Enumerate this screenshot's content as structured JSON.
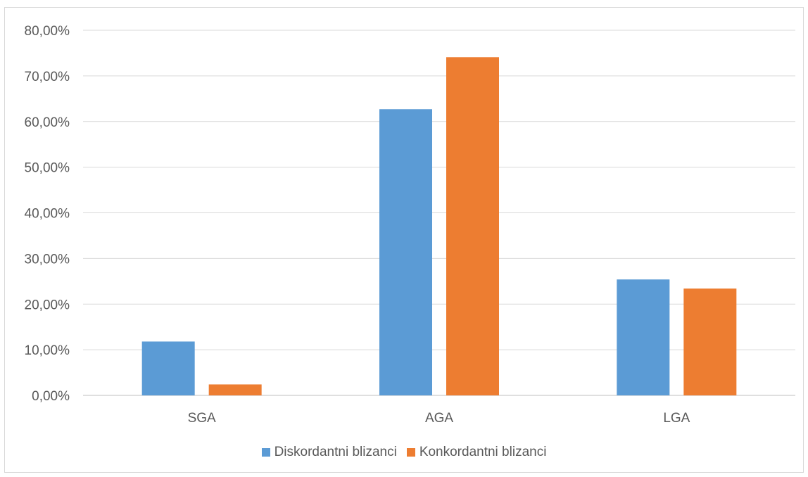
{
  "chart_data": {
    "type": "bar",
    "categories": [
      "SGA",
      "AGA",
      "LGA"
    ],
    "series": [
      {
        "name": "Diskordantni blizanci",
        "values": [
          11.8,
          62.7,
          25.4
        ],
        "color": "#5b9bd5"
      },
      {
        "name": "Konkordantni blizanci",
        "values": [
          2.4,
          74.1,
          23.4
        ],
        "color": "#ed7d31"
      }
    ],
    "ylim": [
      0,
      80
    ],
    "yticks": [
      0,
      10,
      20,
      30,
      40,
      50,
      60,
      70,
      80
    ],
    "ytick_labels": [
      "0,00%",
      "10,00%",
      "20,00%",
      "30,00%",
      "40,00%",
      "50,00%",
      "60,00%",
      "70,00%",
      "80,00%"
    ],
    "grid": true,
    "legend_position": "bottom",
    "title": "",
    "xlabel": "",
    "ylabel": ""
  }
}
